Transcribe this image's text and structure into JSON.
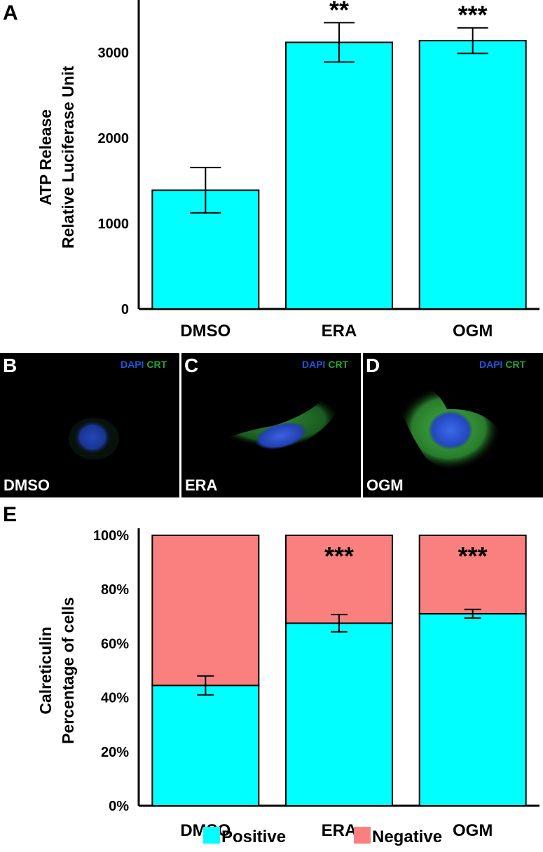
{
  "chart_data": [
    {
      "panel": "A",
      "type": "bar",
      "categories": [
        "DMSO",
        "ERA",
        "OGM"
      ],
      "values": [
        1390,
        3120,
        3140
      ],
      "errors": [
        265,
        230,
        150
      ],
      "significance": [
        "",
        "**",
        "***"
      ],
      "ylabel_lines": [
        "ATP Release",
        "Relative Luciferase Unit"
      ],
      "yticks": [
        "0",
        "1000",
        "2000",
        "3000"
      ],
      "ytick_values": [
        0,
        1000,
        2000,
        3000
      ],
      "ylim": [
        0,
        3550
      ],
      "bar_color": "#00ffff",
      "grid": false
    },
    {
      "panel": "E",
      "type": "bar",
      "stacked": true,
      "categories": [
        "DMSO",
        "ERA",
        "OGM"
      ],
      "series": [
        {
          "name": "Positive",
          "values": [
            44.5,
            67.5,
            71
          ],
          "color": "#00ffff"
        },
        {
          "name": "Negative",
          "values": [
            55.5,
            32.5,
            29
          ],
          "color": "#fa8080"
        }
      ],
      "errors": [
        3.5,
        3.2,
        1.6
      ],
      "significance": [
        "",
        "***",
        "***"
      ],
      "ylabel_lines": [
        "Calreticulin",
        "Percentage of cells"
      ],
      "yticks": [
        "0%",
        "20%",
        "40%",
        "60%",
        "80%",
        "100%"
      ],
      "ytick_values": [
        0,
        20,
        40,
        60,
        80,
        100
      ],
      "ylim": [
        0,
        100
      ],
      "legend_position": "bottom",
      "grid": false
    }
  ],
  "panel_labels": {
    "a": "A",
    "e": "E"
  },
  "micrographs": [
    {
      "letter": "B",
      "stain1": "DAPI",
      "stain2": "CRT",
      "condition": "DMSO"
    },
    {
      "letter": "C",
      "stain1": "DAPI",
      "stain2": "CRT",
      "condition": "ERA"
    },
    {
      "letter": "D",
      "stain1": "DAPI",
      "stain2": "CRT",
      "condition": "OGM"
    }
  ]
}
